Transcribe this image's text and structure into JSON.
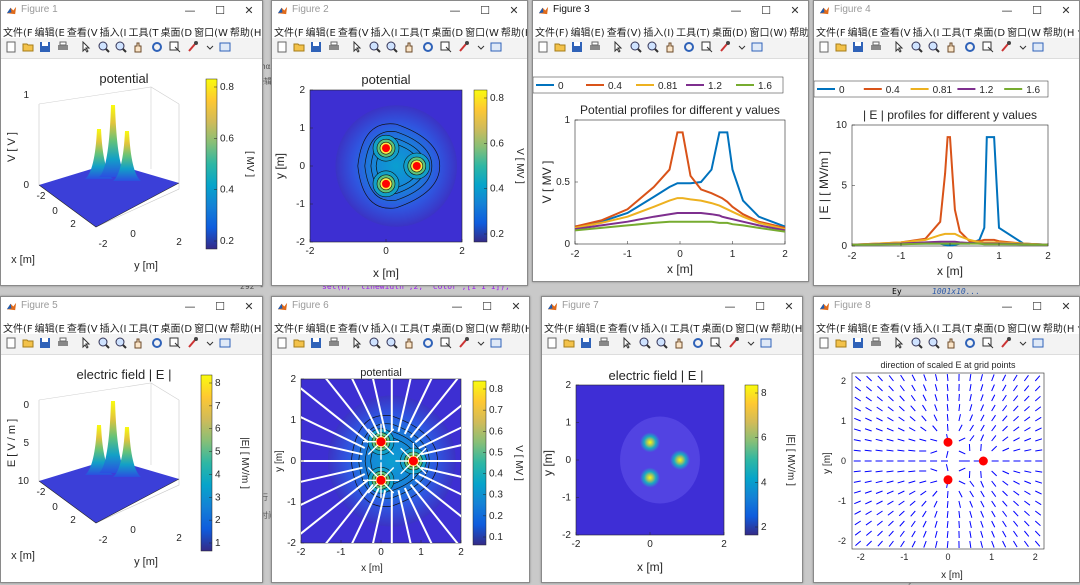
{
  "windows": [
    {
      "title": "Figure 1",
      "plot_title": "potential",
      "axis_labels": [
        "V  [ V ]",
        "x  [m]",
        "y  [m]"
      ],
      "colorbar_label": "[ MV ]",
      "z_ticks": [
        "0",
        "1"
      ],
      "x_ticks": [
        "-2",
        "0",
        "2"
      ],
      "y_ticks": [
        "-2",
        "0",
        "2"
      ],
      "colorbar_ticks": [
        "0.8",
        "0.6",
        "0.4",
        "0.2"
      ]
    },
    {
      "title": "Figure 2",
      "plot_title": "potential",
      "xlabel": "x  [m]",
      "ylabel": "y  [m]",
      "colorbar_label": "V  [ MV ]",
      "x_ticks": [
        "-2",
        "0",
        "2"
      ],
      "y_ticks": [
        "2",
        "1",
        "0",
        "-1",
        "-2"
      ],
      "colorbar_ticks": [
        "0.8",
        "0.6",
        "0.4",
        "0.2"
      ]
    },
    {
      "title": "Figure 3",
      "plot_title": "Potential profiles for different y values",
      "xlabel": "x  [m]",
      "ylabel": "V  [ MV ]",
      "x_ticks": [
        "-2",
        "-1",
        "0",
        "1",
        "2"
      ],
      "y_ticks": [
        "1",
        "0.5",
        "0"
      ]
    },
    {
      "title": "Figure 4",
      "plot_title": "| E | profiles for different y values",
      "xlabel": "x  [m]",
      "ylabel": "| E |  [ MV/m ]",
      "x_ticks": [
        "-2",
        "-1",
        "0",
        "1",
        "2"
      ],
      "y_ticks": [
        "10",
        "5",
        "0"
      ]
    },
    {
      "title": "Figure 5",
      "plot_title": "electric field  | E |",
      "axis_labels": [
        "E  [ V / m ]",
        "x  [m]",
        "y  [m]"
      ],
      "colorbar_label": "|E|  [ MV/m ]",
      "z_ticks": [
        "10",
        "5",
        "0"
      ],
      "x_ticks": [
        "-2",
        "0",
        "2"
      ],
      "y_ticks": [
        "-2",
        "0",
        "2"
      ],
      "colorbar_ticks": [
        "8",
        "7",
        "6",
        "5",
        "4",
        "3",
        "2",
        "1"
      ]
    },
    {
      "title": "Figure 6",
      "plot_title": "potential",
      "xlabel": "x  [m]",
      "ylabel": "y  [m]",
      "colorbar_label": "V  [ MV ]",
      "x_ticks": [
        "-2",
        "-1",
        "0",
        "1",
        "2"
      ],
      "y_ticks": [
        "2",
        "1",
        "0",
        "-1",
        "-2"
      ],
      "colorbar_ticks": [
        "0.8",
        "0.7",
        "0.6",
        "0.5",
        "0.4",
        "0.3",
        "0.2",
        "0.1"
      ]
    },
    {
      "title": "Figure 7",
      "plot_title": "electric field  | E |",
      "xlabel": "x  [m]",
      "ylabel": "y  [m]",
      "colorbar_label": "|E|  [ MV/m ]",
      "x_ticks": [
        "-2",
        "0",
        "2"
      ],
      "y_ticks": [
        "2",
        "1",
        "0",
        "-1",
        "-2"
      ],
      "colorbar_ticks": [
        "8",
        "6",
        "4",
        "2"
      ]
    },
    {
      "title": "Figure 8",
      "plot_title": "direction of scaled E at grid points",
      "xlabel": "x  [m]",
      "ylabel": "y  [m]",
      "x_ticks": [
        "-2",
        "-1",
        "0",
        "1",
        "2"
      ],
      "y_ticks": [
        "2",
        "1",
        "0",
        "-1",
        "-2"
      ]
    }
  ],
  "menu": [
    "文件(F",
    "编辑(E",
    "查看(V",
    "插入(I",
    "工具(T",
    "桌面(D",
    "窗口(W",
    "帮助(H",
    "↘"
  ],
  "menu_fig3": [
    "文件(F)",
    "编辑(E)",
    "查看(V)",
    "插入(I)",
    "工具(T)",
    "桌面(D)",
    "窗口(W)",
    "帮助(H)"
  ],
  "window_controls": {
    "minimize": "—",
    "maximize": "☐",
    "close": "✕"
  },
  "legend_entries": [
    "0",
    "0.4",
    "0.81",
    "1.2",
    "1.6"
  ],
  "colors": {
    "series": [
      "#0072bd",
      "#d95319",
      "#edb120",
      "#7e2f8e",
      "#77ac30"
    ],
    "charge": "#ff0000",
    "arrow": "#0000ff"
  },
  "background_text": [
    "thα",
    "接辑",
    "292 -",
    "set(h, 'linewidth',2, 'color',[1 1 1]);",
    "Ey",
    "1001x10...",
    "行",
    "时间",
    "Ey..."
  ],
  "chart_data": [
    {
      "chart": "Figure 3",
      "type": "line",
      "title": "Potential profiles for different y values",
      "xlabel": "x  [m]",
      "ylabel": "V  [ MV ]",
      "xlim": [
        -2,
        2
      ],
      "ylim": [
        0,
        1
      ],
      "x": [
        -2,
        -1.5,
        -1,
        -0.5,
        -0.2,
        -0.05,
        0,
        0.05,
        0.2,
        0.4,
        0.6,
        0.75,
        0.8,
        0.9,
        1.0,
        1.2,
        1.5,
        2
      ],
      "series": [
        {
          "name": "0",
          "values": [
            0.14,
            0.18,
            0.25,
            0.38,
            0.46,
            0.49,
            0.49,
            0.49,
            0.49,
            0.5,
            0.6,
            0.9,
            0.9,
            0.9,
            0.6,
            0.35,
            0.22,
            0.14
          ]
        },
        {
          "name": "0.4",
          "values": [
            0.14,
            0.19,
            0.28,
            0.46,
            0.6,
            0.9,
            0.9,
            0.9,
            0.55,
            0.44,
            0.41,
            0.38,
            0.37,
            0.34,
            0.3,
            0.24,
            0.18,
            0.13
          ]
        },
        {
          "name": "0.81",
          "values": [
            0.13,
            0.17,
            0.22,
            0.3,
            0.35,
            0.37,
            0.37,
            0.37,
            0.36,
            0.35,
            0.33,
            0.31,
            0.3,
            0.28,
            0.26,
            0.22,
            0.17,
            0.12
          ]
        },
        {
          "name": "1.2",
          "values": [
            0.12,
            0.15,
            0.18,
            0.22,
            0.24,
            0.25,
            0.25,
            0.25,
            0.25,
            0.25,
            0.24,
            0.23,
            0.22,
            0.21,
            0.2,
            0.18,
            0.15,
            0.11
          ]
        },
        {
          "name": "1.6",
          "values": [
            0.11,
            0.13,
            0.15,
            0.17,
            0.18,
            0.18,
            0.18,
            0.18,
            0.18,
            0.18,
            0.18,
            0.17,
            0.17,
            0.17,
            0.16,
            0.15,
            0.13,
            0.1
          ]
        }
      ]
    },
    {
      "chart": "Figure 4",
      "type": "line",
      "title": "| E | profiles for different y values",
      "xlabel": "x  [m]",
      "ylabel": "| E |  [ MV/m ]",
      "xlim": [
        -2,
        2
      ],
      "ylim": [
        0,
        10
      ],
      "x": [
        -2,
        -1,
        -0.5,
        -0.2,
        -0.1,
        -0.05,
        0,
        0.05,
        0.1,
        0.2,
        0.4,
        0.6,
        0.7,
        0.75,
        0.8,
        0.85,
        0.9,
        1.0,
        1.5,
        2
      ],
      "series": [
        {
          "name": "0",
          "values": [
            0.1,
            0.2,
            0.2,
            0.2,
            0.1,
            0.05,
            0.05,
            0.05,
            0.1,
            0.2,
            0.2,
            0.5,
            1.5,
            9,
            9,
            9,
            9,
            1.5,
            0.2,
            0.1
          ]
        },
        {
          "name": "0.4",
          "values": [
            0.1,
            0.3,
            0.6,
            2,
            6,
            9,
            9,
            6,
            3,
            1.2,
            0.4,
            0.4,
            0.5,
            0.5,
            0.5,
            0.5,
            0.5,
            0.4,
            0.2,
            0.1
          ]
        },
        {
          "name": "0.81",
          "values": [
            0.1,
            0.3,
            0.5,
            0.9,
            1.0,
            1.0,
            1.0,
            1.0,
            1.0,
            0.8,
            0.5,
            0.3,
            0.3,
            0.3,
            0.3,
            0.3,
            0.3,
            0.3,
            0.2,
            0.1
          ]
        },
        {
          "name": "1.2",
          "values": [
            0.1,
            0.2,
            0.3,
            0.35,
            0.35,
            0.35,
            0.35,
            0.35,
            0.35,
            0.3,
            0.25,
            0.2,
            0.2,
            0.2,
            0.2,
            0.2,
            0.2,
            0.2,
            0.15,
            0.1
          ]
        },
        {
          "name": "1.6",
          "values": [
            0.1,
            0.15,
            0.2,
            0.2,
            0.2,
            0.2,
            0.2,
            0.2,
            0.2,
            0.2,
            0.2,
            0.2,
            0.15,
            0.15,
            0.15,
            0.15,
            0.15,
            0.15,
            0.12,
            0.1
          ]
        }
      ]
    },
    {
      "chart": "Figure 2/6/7/8",
      "type": "scatter",
      "xlabel": "x  [m]",
      "ylabel": "y  [m]",
      "xlim": [
        -2,
        2
      ],
      "ylim": [
        -2,
        2
      ],
      "series": [
        {
          "x": [
            0,
            0.81,
            0
          ],
          "y": [
            0.47,
            0,
            -0.47
          ]
        }
      ]
    }
  ]
}
